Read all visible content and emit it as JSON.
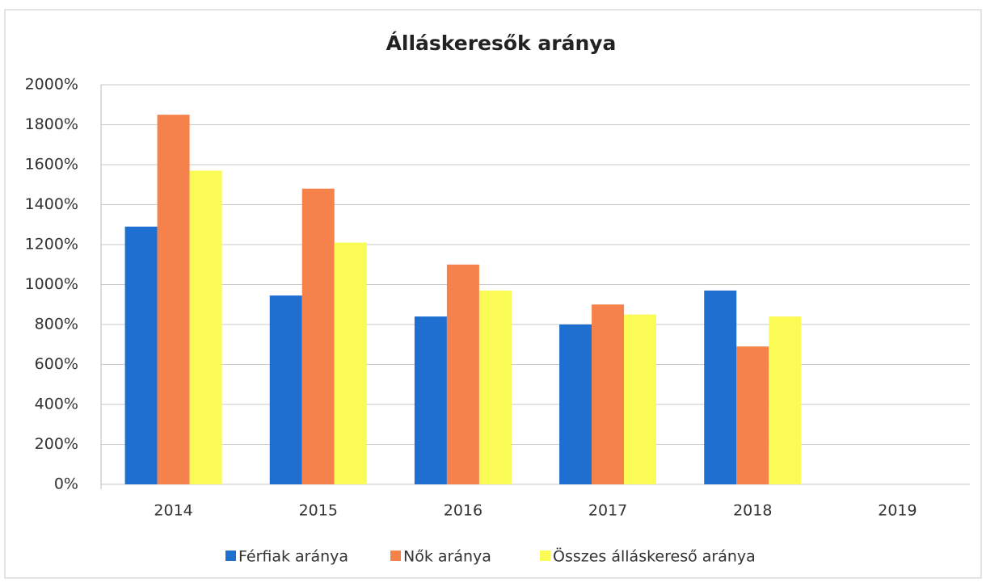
{
  "chart_data": {
    "type": "bar",
    "title": "Álláskeresők aránya",
    "categories": [
      "2014",
      "2015",
      "2016",
      "2017",
      "2018",
      "2019"
    ],
    "series": [
      {
        "name": "Férfiak aránya",
        "color": "#1f6fd1",
        "values": [
          1290,
          945,
          840,
          800,
          970,
          null
        ]
      },
      {
        "name": "Nők aránya",
        "color": "#f5824a",
        "values": [
          1850,
          1480,
          1100,
          900,
          690,
          null
        ]
      },
      {
        "name": "Összes álláskereső aránya",
        "color": "#fbfb55",
        "values": [
          1570,
          1210,
          970,
          850,
          840,
          null
        ]
      }
    ],
    "ylim": [
      0,
      2000
    ],
    "yticks": [
      {
        "value": 0,
        "label": "0%"
      },
      {
        "value": 200,
        "label": "200%"
      },
      {
        "value": 400,
        "label": "400%"
      },
      {
        "value": 600,
        "label": "600%"
      },
      {
        "value": 800,
        "label": "800%"
      },
      {
        "value": 1000,
        "label": "1000%"
      },
      {
        "value": 1200,
        "label": "1200%"
      },
      {
        "value": 1400,
        "label": "1400%"
      },
      {
        "value": 1600,
        "label": "1600%"
      },
      {
        "value": 1800,
        "label": "1800%"
      },
      {
        "value": 2000,
        "label": "2000%"
      }
    ],
    "grid": true,
    "legend": "bottom"
  }
}
